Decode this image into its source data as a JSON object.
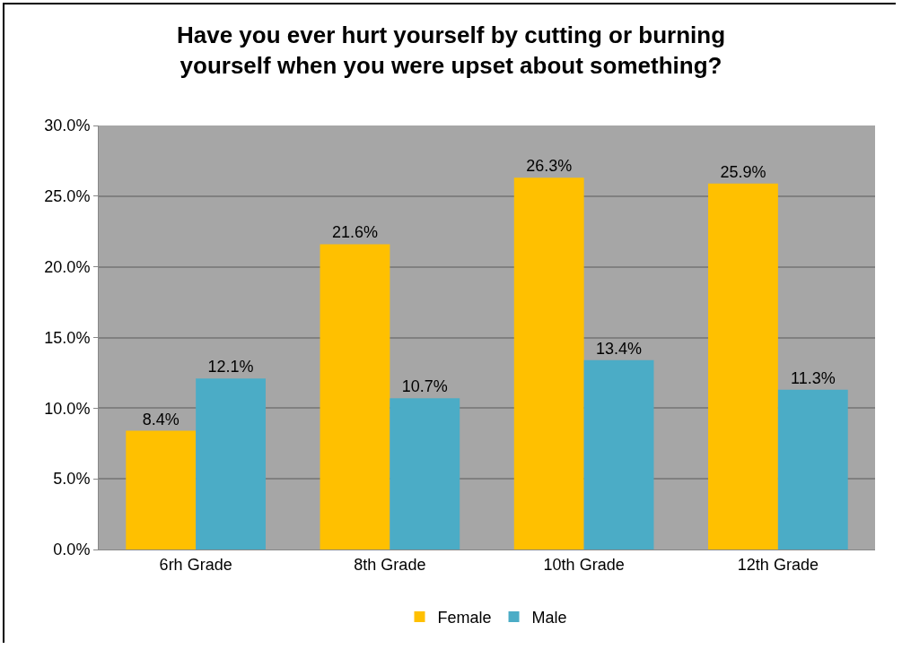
{
  "chart_data": {
    "type": "bar",
    "title": "Have you ever hurt yourself by cutting or burning yourself when you were upset about something?",
    "categories": [
      "6rh Grade",
      "8th Grade",
      "10th Grade",
      "12th Grade"
    ],
    "series": [
      {
        "name": "Female",
        "color": "#ffc000",
        "values": [
          8.4,
          21.6,
          26.3,
          25.9
        ],
        "value_labels": [
          "8.4%",
          "21.6%",
          "26.3%",
          "25.9%"
        ]
      },
      {
        "name": "Male",
        "color": "#4bacc6",
        "values": [
          12.1,
          10.7,
          13.4,
          11.3
        ],
        "value_labels": [
          "12.1%",
          "10.7%",
          "13.4%",
          "11.3%"
        ]
      }
    ],
    "ylim": [
      0,
      30
    ],
    "yticks": [
      {
        "value": 0,
        "label": "0.0%"
      },
      {
        "value": 5,
        "label": "5.0%"
      },
      {
        "value": 10,
        "label": "10.0%"
      },
      {
        "value": 15,
        "label": "15.0%"
      },
      {
        "value": 20,
        "label": "20.0%"
      },
      {
        "value": 25,
        "label": "25.0%"
      },
      {
        "value": 30,
        "label": "30.0%"
      }
    ],
    "grid": "y",
    "legend": "bottom"
  }
}
